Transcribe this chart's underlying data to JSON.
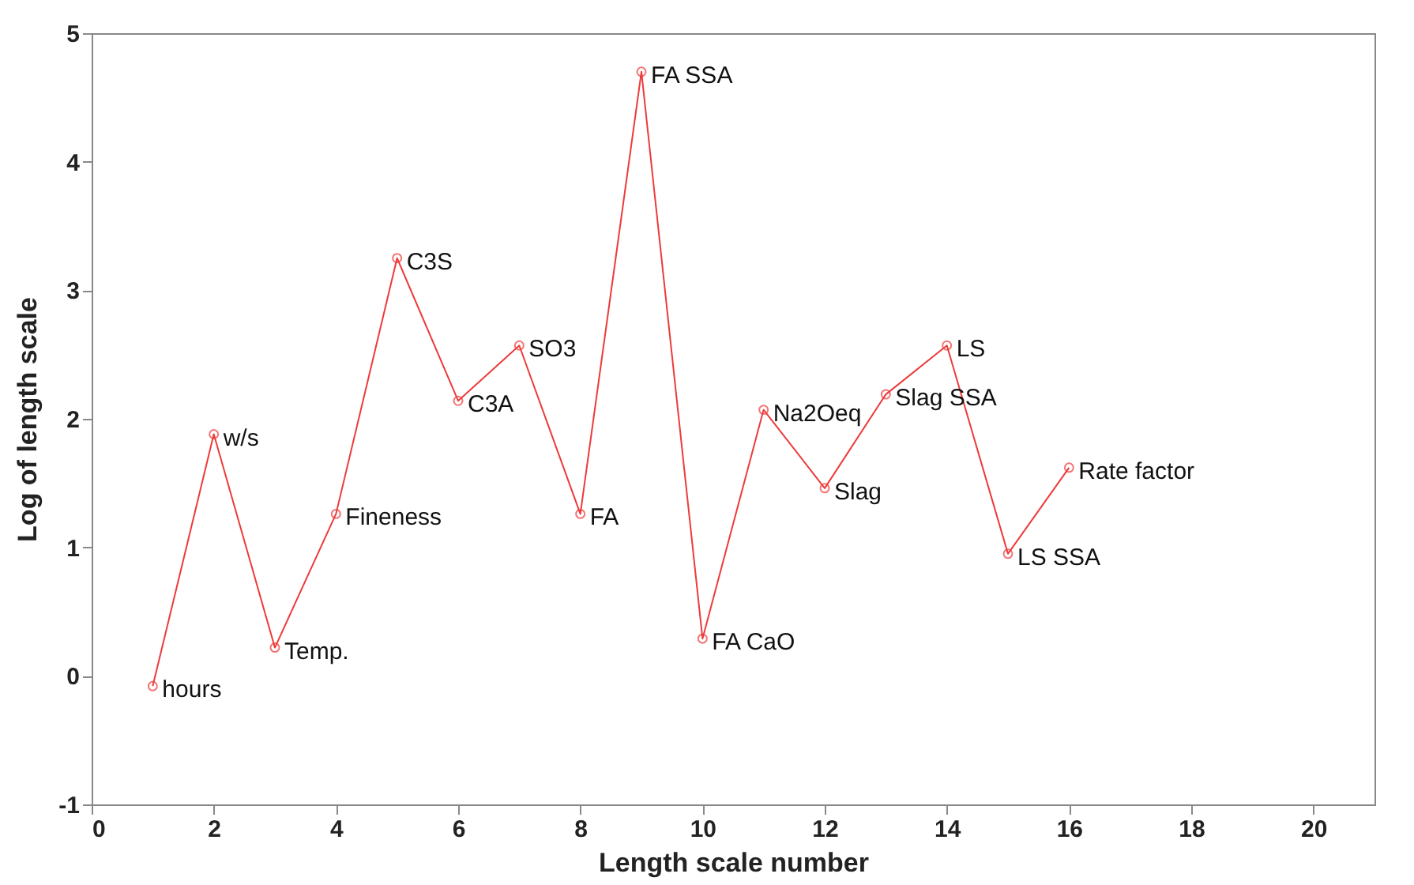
{
  "chart_data": {
    "type": "line",
    "xlabel": "Length scale number",
    "ylabel": "Log of length scale",
    "x": [
      1,
      2,
      3,
      4,
      5,
      6,
      7,
      8,
      9,
      10,
      11,
      12,
      13,
      14,
      15,
      16
    ],
    "series": [
      {
        "color": "#ee3a3a",
        "values": [
          -0.08,
          1.88,
          0.22,
          1.26,
          3.25,
          2.14,
          2.57,
          1.26,
          4.7,
          0.29,
          2.07,
          1.46,
          2.19,
          2.57,
          0.95,
          1.62
        ]
      }
    ],
    "xlim": [
      0,
      21
    ],
    "xticks": [
      0,
      2,
      4,
      6,
      8,
      10,
      12,
      14,
      16,
      18,
      20
    ],
    "ylim": [
      -1,
      5
    ],
    "yticks": [
      -1,
      0,
      1,
      2,
      3,
      4,
      5
    ],
    "grid": false,
    "marker": "circle",
    "line_style": "solid",
    "annotations": [
      {
        "text": "hours",
        "x": 1,
        "y": -0.08
      },
      {
        "text": "w/s",
        "x": 2,
        "y": 1.88
      },
      {
        "text": "Temp.",
        "x": 3,
        "y": 0.22
      },
      {
        "text": "Fineness",
        "x": 4,
        "y": 1.26
      },
      {
        "text": "C3S",
        "x": 5,
        "y": 3.25
      },
      {
        "text": "C3A",
        "x": 6,
        "y": 2.14
      },
      {
        "text": "SO3",
        "x": 7,
        "y": 2.57
      },
      {
        "text": "FA",
        "x": 8,
        "y": 1.26
      },
      {
        "text": "FA SSA",
        "x": 9,
        "y": 4.7
      },
      {
        "text": "FA CaO",
        "x": 10,
        "y": 0.29
      },
      {
        "text": "Na2Oeq",
        "x": 11,
        "y": 2.07
      },
      {
        "text": "Slag",
        "x": 12,
        "y": 1.46
      },
      {
        "text": "Slag SSA",
        "x": 13,
        "y": 2.19
      },
      {
        "text": "LS",
        "x": 14,
        "y": 2.57
      },
      {
        "text": "LS SSA",
        "x": 15,
        "y": 0.95
      },
      {
        "text": "Rate factor",
        "x": 16,
        "y": 1.62
      }
    ]
  }
}
